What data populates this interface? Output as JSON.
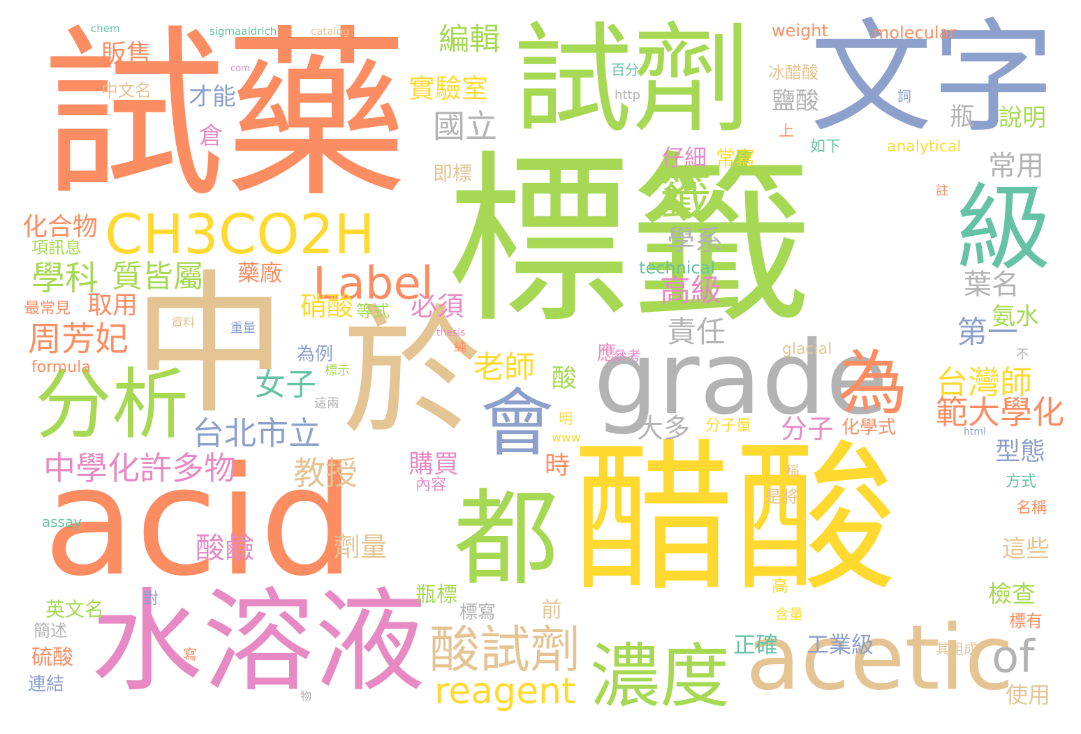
{
  "palette": {
    "orange": "#fc8d62",
    "green": "#a6d854",
    "blue": "#8da0cb",
    "yellow": "#ffd92f",
    "tan": "#e5c494",
    "pink": "#e78ac3",
    "teal": "#66c2a5",
    "gray": "#b3b3b3"
  },
  "words": [
    {
      "text": "標籤",
      "color": "#a6d854"
    },
    {
      "text": "試藥",
      "color": "#fc8d62"
    },
    {
      "text": "醋酸",
      "color": "#ffd92f"
    },
    {
      "text": "acid",
      "color": "#fc8d62"
    },
    {
      "text": "中",
      "color": "#e5c494"
    },
    {
      "text": "試劑",
      "color": "#a6d854"
    },
    {
      "text": "文字",
      "color": "#8da0cb"
    },
    {
      "text": "於",
      "color": "#e5c494"
    },
    {
      "text": "水溶液",
      "color": "#e78ac3"
    },
    {
      "text": "grade",
      "color": "#b3b3b3"
    },
    {
      "text": "acetic",
      "color": "#e5c494"
    },
    {
      "text": "級",
      "color": "#66c2a5"
    },
    {
      "text": "都",
      "color": "#a6d854"
    },
    {
      "text": "分析",
      "color": "#a6d854"
    },
    {
      "text": "CH3CO2H",
      "color": "#ffd92f"
    },
    {
      "text": "會",
      "color": "#8da0cb"
    },
    {
      "text": "濃度",
      "color": "#a6d854"
    },
    {
      "text": "為",
      "color": "#fc8d62"
    },
    {
      "text": "酸試劑",
      "color": "#e5c494"
    },
    {
      "text": "Label",
      "color": "#fc8d62"
    },
    {
      "text": "籤",
      "color": "#a6d854"
    },
    {
      "text": "reagent",
      "color": "#ffd92f"
    },
    {
      "text": "of",
      "color": "#b3b3b3"
    },
    {
      "text": "中學化許多物",
      "color": "#e78ac3"
    },
    {
      "text": "台北市立",
      "color": "#8da0cb"
    },
    {
      "text": "周芳妃",
      "color": "#fc8d62"
    },
    {
      "text": "學科",
      "color": "#a6d854"
    },
    {
      "text": "質皆屬",
      "color": "#a6d854"
    },
    {
      "text": "實驗室",
      "color": "#ffd92f"
    },
    {
      "text": "國立",
      "color": "#b3b3b3"
    },
    {
      "text": "編輯",
      "color": "#a6d854"
    },
    {
      "text": "高級",
      "color": "#e78ac3"
    },
    {
      "text": "學系",
      "color": "#b3b3b3"
    },
    {
      "text": "責任",
      "color": "#b3b3b3"
    },
    {
      "text": "老師",
      "color": "#ffd92f"
    },
    {
      "text": "女子",
      "color": "#66c2a5"
    },
    {
      "text": "教授",
      "color": "#e5c494"
    },
    {
      "text": "台灣師",
      "color": "#ffd92f"
    },
    {
      "text": "範大學化",
      "color": "#fc8d62"
    },
    {
      "text": "第一",
      "color": "#8da0cb"
    },
    {
      "text": "葉名",
      "color": "#b3b3b3"
    },
    {
      "text": "常用",
      "color": "#b3b3b3"
    },
    {
      "text": "鹽酸",
      "color": "#b3b3b3"
    },
    {
      "text": "瓶",
      "color": "#b3b3b3"
    },
    {
      "text": "說明",
      "color": "#a6d854"
    },
    {
      "text": "化合物",
      "color": "#fc8d62"
    },
    {
      "text": "酸鹼",
      "color": "#e78ac3"
    },
    {
      "text": "劑量",
      "color": "#e5c494"
    },
    {
      "text": "分子",
      "color": "#e78ac3"
    },
    {
      "text": "大多",
      "color": "#b3b3b3"
    },
    {
      "text": "硝酸",
      "color": "#ffd92f"
    },
    {
      "text": "必須",
      "color": "#e78ac3"
    },
    {
      "text": "取用",
      "color": "#fc8d62"
    },
    {
      "text": "販售",
      "color": "#fc8d62"
    },
    {
      "text": "才能",
      "color": "#8da0cb"
    },
    {
      "text": "倉",
      "color": "#e78ac3"
    },
    {
      "text": "仔細",
      "color": "#e78ac3"
    },
    {
      "text": "常寫",
      "color": "#ffd92f"
    },
    {
      "text": "藥廠",
      "color": "#fc8d62"
    },
    {
      "text": "購買",
      "color": "#e78ac3"
    },
    {
      "text": "時",
      "color": "#fc8d62"
    },
    {
      "text": "酸",
      "color": "#a6d854"
    },
    {
      "text": "型態",
      "color": "#8da0cb"
    },
    {
      "text": "氨水",
      "color": "#a6d854"
    },
    {
      "text": "這些",
      "color": "#e5c494"
    },
    {
      "text": "檢查",
      "color": "#a6d854"
    },
    {
      "text": "使用",
      "color": "#e5c494"
    },
    {
      "text": "正確",
      "color": "#66c2a5"
    },
    {
      "text": "工業級",
      "color": "#8da0cb"
    },
    {
      "text": "硫酸",
      "color": "#fc8d62"
    },
    {
      "text": "瓶標",
      "color": "#a6d854"
    },
    {
      "text": "前",
      "color": "#e5c494"
    },
    {
      "text": "標寫",
      "color": "#b3b3b3"
    },
    {
      "text": "英文名",
      "color": "#a6d854"
    },
    {
      "text": "簡述",
      "color": "#b3b3b3"
    },
    {
      "text": "連結",
      "color": "#8da0cb"
    },
    {
      "text": "最常見",
      "color": "#fc8d62"
    },
    {
      "text": "項訊息",
      "color": "#a6d854"
    },
    {
      "text": "中文名",
      "color": "#e5c494"
    },
    {
      "text": "為例",
      "color": "#8da0cb"
    },
    {
      "text": "等式",
      "color": "#a6d854"
    },
    {
      "text": "分子量",
      "color": "#ffd92f"
    },
    {
      "text": "化學式",
      "color": "#fc8d62"
    },
    {
      "text": "即標",
      "color": "#e5c494"
    },
    {
      "text": "冰醋酸",
      "color": "#e5c494"
    },
    {
      "text": "如下",
      "color": "#66c2a5"
    },
    {
      "text": "上",
      "color": "#fc8d62"
    },
    {
      "text": "百分",
      "color": "#66c2a5"
    },
    {
      "text": "詞",
      "color": "#8da0cb"
    },
    {
      "text": "應",
      "color": "#e78ac3"
    },
    {
      "text": "參考",
      "color": "#e78ac3"
    },
    {
      "text": "內容",
      "color": "#e78ac3"
    },
    {
      "text": "是將",
      "color": "#e5c494"
    },
    {
      "text": "稱",
      "color": "#e5c494"
    },
    {
      "text": "方式",
      "color": "#66c2a5"
    },
    {
      "text": "名稱",
      "color": "#fc8d62"
    },
    {
      "text": "高",
      "color": "#ffd92f"
    },
    {
      "text": "含量",
      "color": "#ffd92f"
    },
    {
      "text": "其組成",
      "color": "#e5c494"
    },
    {
      "text": "標有",
      "color": "#fc8d62"
    },
    {
      "text": "不",
      "color": "#b3b3b3"
    },
    {
      "text": "註",
      "color": "#fc8d62"
    },
    {
      "text": "對",
      "color": "#8da0cb"
    },
    {
      "text": "寫",
      "color": "#fc8d62"
    },
    {
      "text": "物",
      "color": "#b3b3b3"
    },
    {
      "text": "資料",
      "color": "#e5c494"
    },
    {
      "text": "重量",
      "color": "#8da0cb"
    },
    {
      "text": "純",
      "color": "#fc8d62"
    },
    {
      "text": "標示",
      "color": "#a6d854"
    },
    {
      "text": "這兩",
      "color": "#b3b3b3"
    },
    {
      "text": "明",
      "color": "#ffd92f"
    },
    {
      "text": "weight",
      "color": "#fc8d62"
    },
    {
      "text": "molecular",
      "color": "#fc8d62"
    },
    {
      "text": "analytical",
      "color": "#ffd92f"
    },
    {
      "text": "technical",
      "color": "#66c2a5"
    },
    {
      "text": "glacial",
      "color": "#e5c494"
    },
    {
      "text": "formula",
      "color": "#fc8d62"
    },
    {
      "text": "assay",
      "color": "#66c2a5"
    },
    {
      "text": "chem",
      "color": "#66c2a5"
    },
    {
      "text": "sigmaaldrich",
      "color": "#66c2a5"
    },
    {
      "text": "catalog",
      "color": "#e5c494"
    },
    {
      "text": "com",
      "color": "#e78ac3"
    },
    {
      "text": "http",
      "color": "#b3b3b3"
    },
    {
      "text": "thesis",
      "color": "#e78ac3"
    },
    {
      "text": "www",
      "color": "#ffd92f"
    },
    {
      "text": "html",
      "color": "#8da0cb"
    }
  ]
}
